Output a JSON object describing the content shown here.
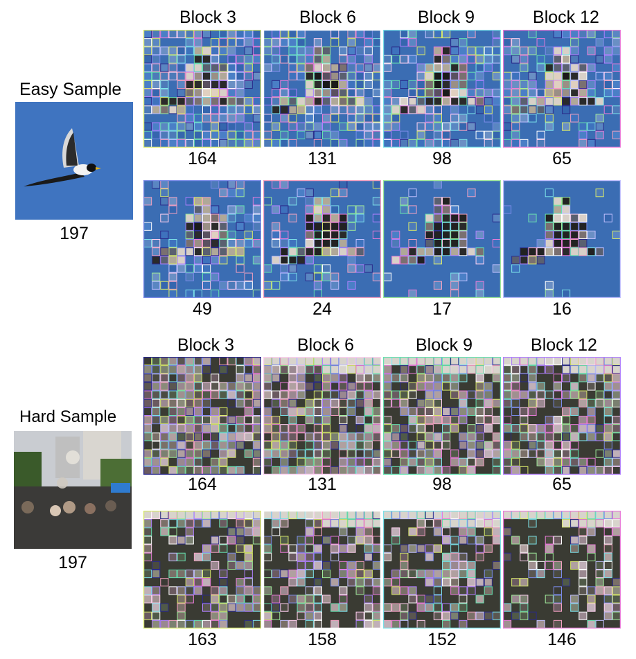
{
  "block_labels": [
    "Block 3",
    "Block 6",
    "Block 9",
    "Block 12"
  ],
  "easy": {
    "title": "Easy Sample",
    "count": "197",
    "row1_counts": [
      "164",
      "131",
      "98",
      "65"
    ],
    "row2_counts": [
      "49",
      "24",
      "17",
      "16"
    ],
    "background_color": "#3b6db3"
  },
  "hard": {
    "title": "Hard Sample",
    "count": "197",
    "row1_counts": [
      "164",
      "131",
      "98",
      "65"
    ],
    "row2_counts": [
      "163",
      "158",
      "152",
      "146"
    ],
    "background_color": "#3a3b33"
  }
}
